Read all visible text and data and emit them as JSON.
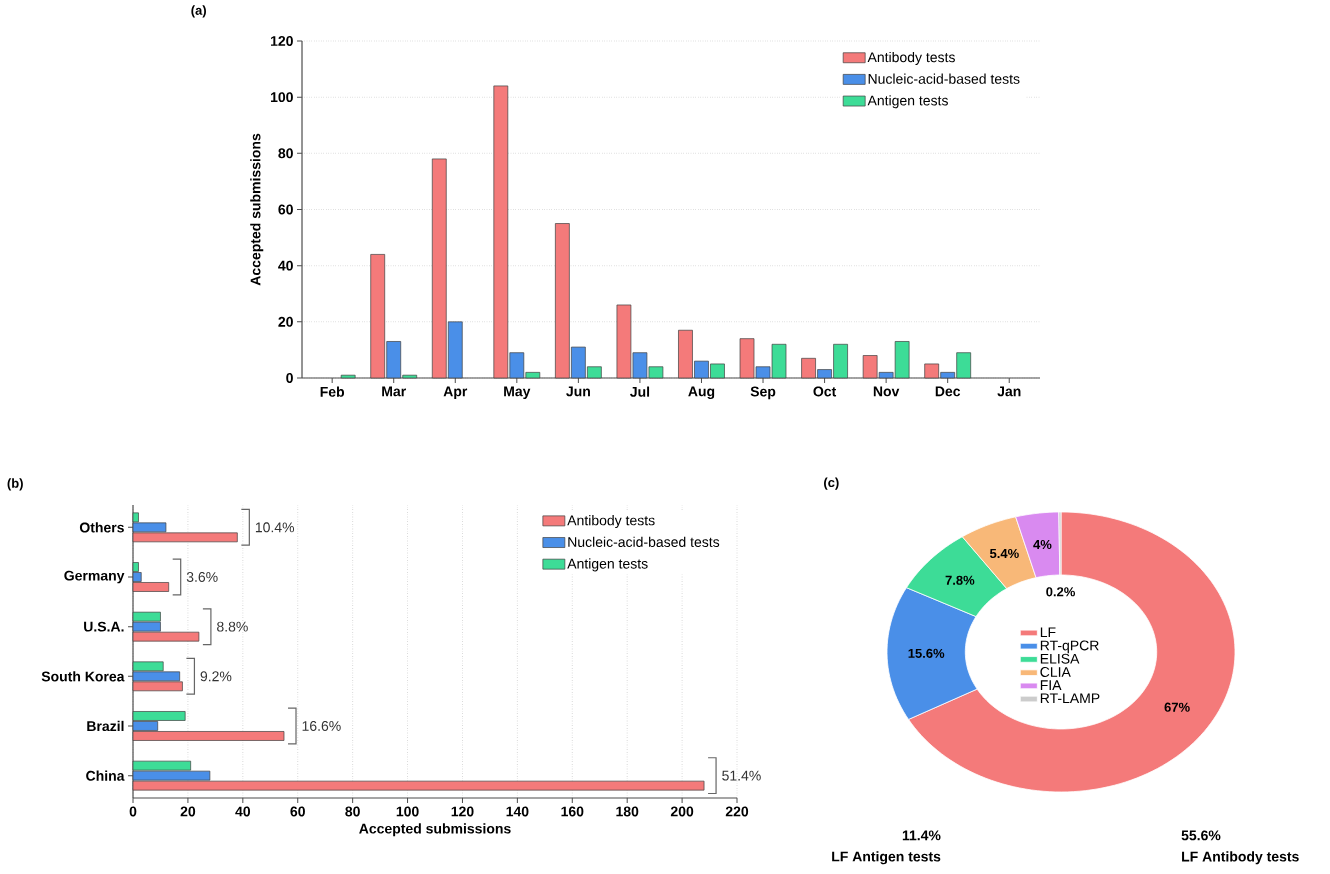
{
  "chart_data": [
    {
      "type": "bar",
      "title": "(a)",
      "ylabel": "Accepted submissions",
      "categories": [
        "Feb",
        "Mar",
        "Apr",
        "May",
        "Jun",
        "Jul",
        "Aug",
        "Sep",
        "Oct",
        "Nov",
        "Dec",
        "Jan"
      ],
      "series": [
        {
          "name": "Antibody tests",
          "color": "#f47a7a",
          "values": [
            0,
            44,
            78,
            104,
            55,
            26,
            17,
            14,
            7,
            8,
            5,
            0
          ]
        },
        {
          "name": "Nucleic-acid-based tests",
          "color": "#4a8fe8",
          "values": [
            0,
            13,
            20,
            9,
            11,
            9,
            6,
            4,
            3,
            2,
            2,
            0
          ]
        },
        {
          "name": "Antigen tests",
          "color": "#3ddc97",
          "values": [
            1,
            1,
            0,
            2,
            4,
            4,
            5,
            12,
            12,
            13,
            9,
            0
          ]
        }
      ],
      "ylim": [
        0,
        120
      ],
      "yticks": [
        0,
        20,
        40,
        60,
        80,
        100,
        120
      ],
      "grid": "y",
      "legend": "top right"
    },
    {
      "type": "bar",
      "orientation": "horizontal",
      "title": "(b)",
      "xlabel": "Accepted submissions",
      "categories": [
        "Others",
        "Germany",
        "U.S.A.",
        "South Korea",
        "Brazil",
        "China"
      ],
      "series": [
        {
          "name": "Antibody tests",
          "color": "#f47a7a",
          "values": [
            38,
            13,
            24,
            18,
            55,
            208
          ]
        },
        {
          "name": "Nucleic-acid-based tests",
          "color": "#4a8fe8",
          "values": [
            12,
            3,
            10,
            17,
            9,
            28
          ]
        },
        {
          "name": "Antigen tests",
          "color": "#3ddc97",
          "values": [
            2,
            2,
            10,
            11,
            19,
            21
          ]
        }
      ],
      "xlim": [
        0,
        220
      ],
      "xticks": [
        0,
        20,
        40,
        60,
        80,
        100,
        120,
        140,
        160,
        180,
        200,
        220
      ],
      "grid": "x",
      "legend": "top right",
      "annotations": [
        "10.4%",
        "3.6%",
        "8.8%",
        "9.2%",
        "16.6%",
        "51.4%"
      ]
    },
    {
      "type": "donut",
      "title": "(c)",
      "categories": [
        "LF",
        "RT-qPCR",
        "ELISA",
        "CLIA",
        "FIA",
        "RT-LAMP"
      ],
      "values": [
        67,
        15.6,
        7.8,
        5.4,
        4,
        0.2
      ],
      "value_labels": [
        "67%",
        "15.6%",
        "7.8%",
        "5.4%",
        "4%",
        "0.2%"
      ],
      "colors": [
        "#f47a7a",
        "#4a8fe8",
        "#3ddc97",
        "#f8b878",
        "#d98af0",
        "#cccccc"
      ],
      "legend": "center",
      "annotations": [
        "55.6%",
        "LF Antibody tests",
        "11.4%",
        "LF Antigen tests"
      ]
    }
  ]
}
